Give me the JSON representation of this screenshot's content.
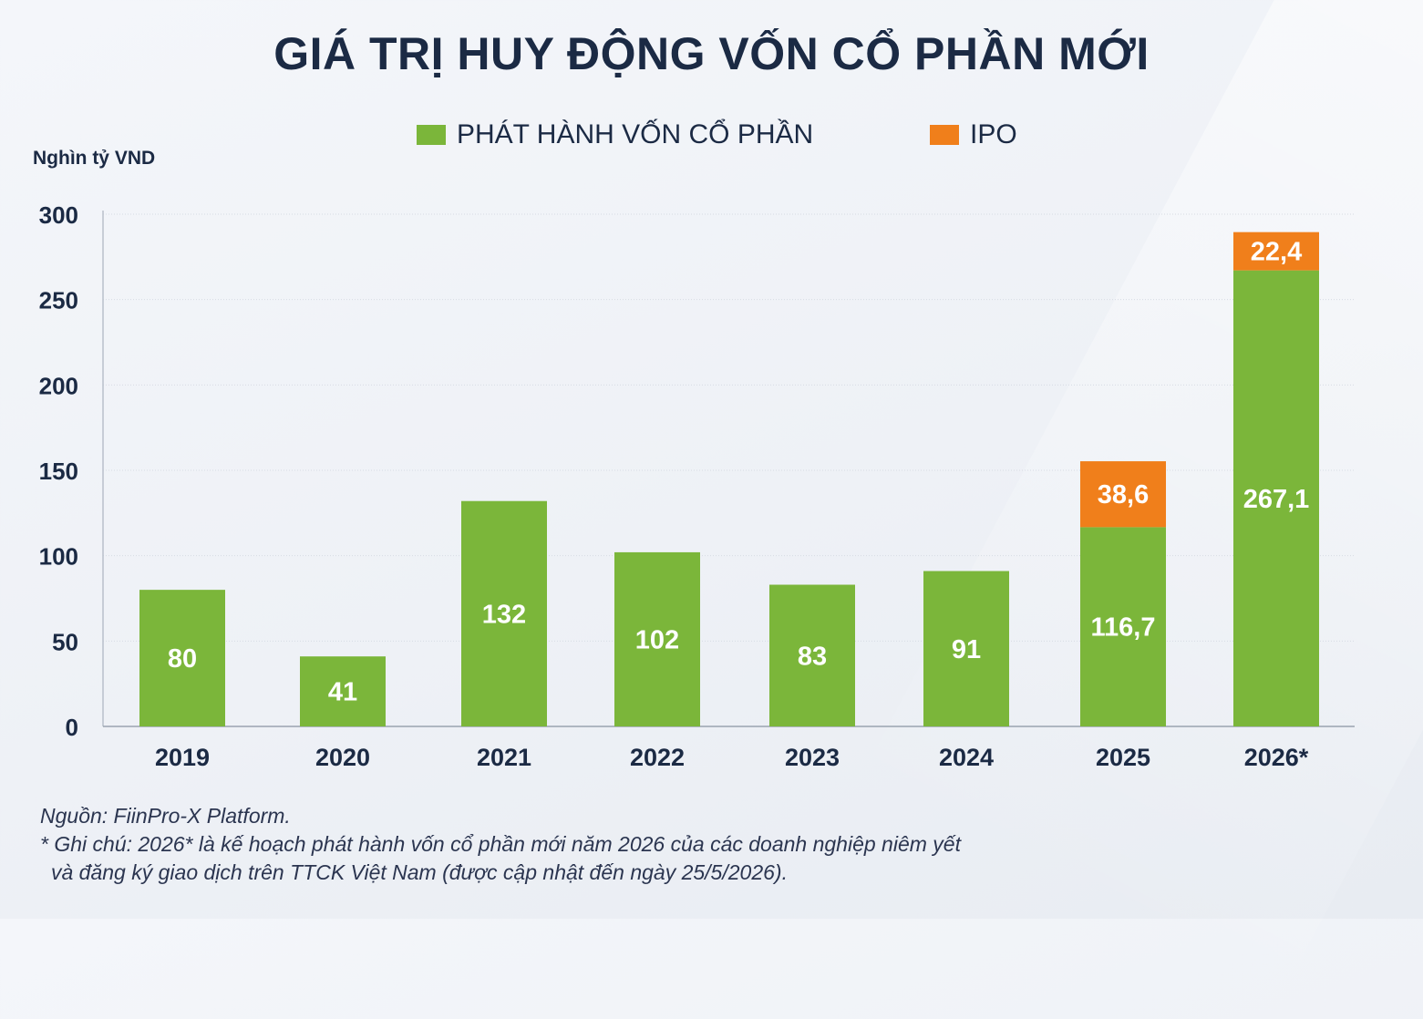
{
  "title": "GIÁ TRỊ HUY ĐỘNG VỐN CỔ PHẦN MỚI",
  "unit_label": "Nghìn tỷ VND",
  "colors": {
    "equity": "#7bb63a",
    "ipo": "#f07f1b",
    "axis_text": "#1b2a44",
    "grid": "#d6dbe3"
  },
  "footnotes": {
    "source": "Nguồn: FiinPro-X Platform.",
    "note_line1": "* Ghi chú: 2026* là kế hoạch phát hành vốn cổ phần mới năm 2026 của các doanh nghiệp niêm yết",
    "note_line2": "và đăng ký giao dịch trên TTCK Việt Nam (được cập nhật đến ngày 25/5/2026)."
  },
  "chart_data": {
    "type": "bar",
    "stacked": true,
    "title": "GIÁ TRỊ HUY ĐỘNG VỐN CỔ PHẦN MỚI",
    "ylabel": "Nghìn tỷ VND",
    "xlabel": "",
    "ylim": [
      0,
      300
    ],
    "yticks": [
      0,
      50,
      100,
      150,
      200,
      250,
      300
    ],
    "grid": true,
    "legend_position": "top",
    "categories": [
      "2019",
      "2020",
      "2021",
      "2022",
      "2023",
      "2024",
      "2025",
      "2026*"
    ],
    "series": [
      {
        "name": "PHÁT HÀNH VỐN CỔ PHẦN",
        "color": "#7bb63a",
        "values": [
          80,
          41,
          132,
          102,
          83,
          91,
          116.7,
          267.1
        ],
        "labels": [
          "80",
          "41",
          "132",
          "102",
          "83",
          "91",
          "116,7",
          "267,1"
        ]
      },
      {
        "name": "IPO",
        "color": "#f07f1b",
        "values": [
          0,
          0,
          0,
          0,
          0,
          0,
          38.6,
          22.4
        ],
        "labels": [
          "",
          "",
          "",
          "",
          "",
          "",
          "38,6",
          "22,4"
        ]
      }
    ]
  }
}
